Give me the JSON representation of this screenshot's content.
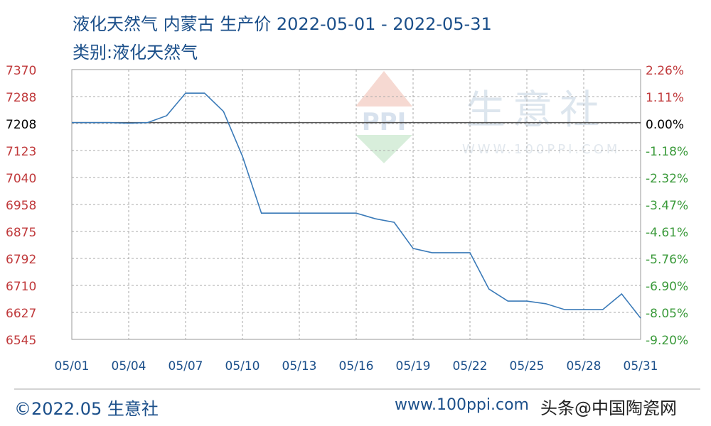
{
  "title": "液化天然气 内蒙古 生产价 2022-05-01 - 2022-05-31",
  "subtitle": "类别:液化天然气",
  "footer": {
    "copyright": "©2022.05 生意社",
    "site": "www.100ppi.com",
    "overlay": "头条@中国陶瓷网"
  },
  "watermark": {
    "brand": "生意社",
    "url": "WWW.100PPI.COM",
    "logo": "PPI"
  },
  "colors": {
    "line": "#3a7ab8",
    "left_axis": "#c0393b",
    "right_axis_pos": "#c0393b",
    "right_axis_neg": "#3a9a3a",
    "text": "#1b4f8a"
  },
  "chart_data": {
    "type": "line",
    "ylim": [
      6545,
      7370
    ],
    "y_ticks": [
      "7370",
      "7288",
      "7208",
      "7123",
      "7040",
      "6958",
      "6875",
      "6792",
      "6710",
      "6627",
      "6545"
    ],
    "y2_ticks": [
      "2.26%",
      "1.11%",
      "0.00%",
      "-1.18%",
      "-2.32%",
      "-3.47%",
      "-4.61%",
      "-5.76%",
      "-6.90%",
      "-8.05%",
      "-9.20%"
    ],
    "x_ticks": [
      "05/01",
      "05/04",
      "05/07",
      "05/10",
      "05/13",
      "05/16",
      "05/19",
      "05/22",
      "05/25",
      "05/28",
      "05/31"
    ],
    "baseline": 7208,
    "grid": true,
    "x": [
      "05/01",
      "05/02",
      "05/03",
      "05/04",
      "05/05",
      "05/06",
      "05/07",
      "05/08",
      "05/09",
      "05/10",
      "05/11",
      "05/12",
      "05/13",
      "05/14",
      "05/15",
      "05/16",
      "05/17",
      "05/18",
      "05/19",
      "05/20",
      "05/21",
      "05/22",
      "05/23",
      "05/24",
      "05/25",
      "05/26",
      "05/27",
      "05/28",
      "05/29",
      "05/30",
      "05/31"
    ],
    "values": [
      7208,
      7208,
      7208,
      7206,
      7208,
      7229,
      7298,
      7298,
      7242,
      7105,
      6931,
      6931,
      6931,
      6931,
      6931,
      6931,
      6914,
      6903,
      6823,
      6810,
      6810,
      6810,
      6699,
      6662,
      6662,
      6654,
      6636,
      6636,
      6636,
      6684,
      6610
    ]
  }
}
